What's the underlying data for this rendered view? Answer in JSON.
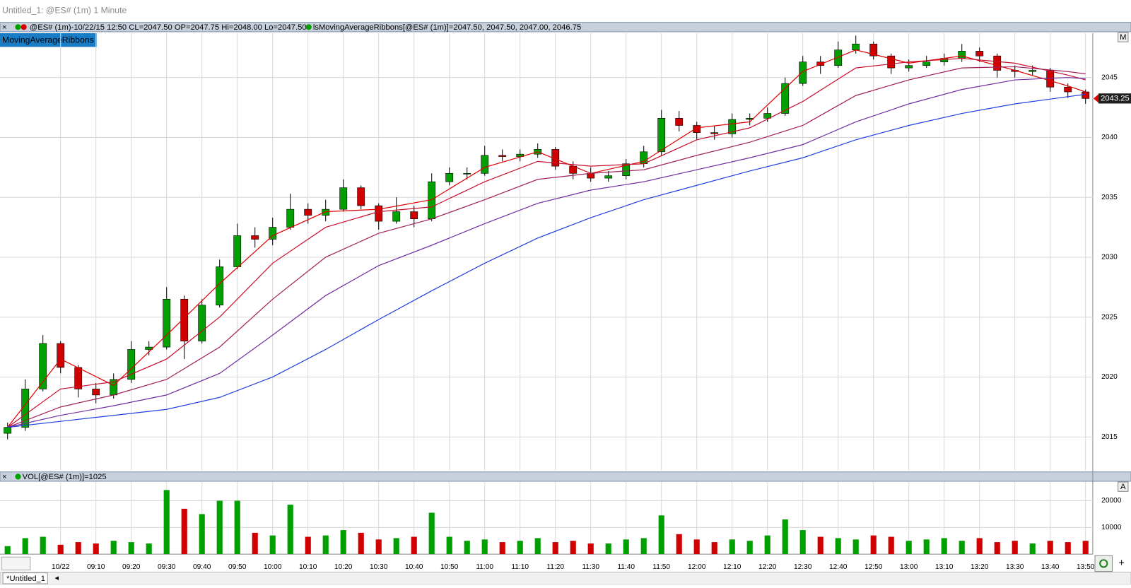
{
  "window_title": "Untitled_1: @ES# (1m) 1 Minute",
  "chart_data": [
    {
      "type": "candlestick",
      "header": "@ES# (1m)-10/22/15 12:50 CL=2047.50 OP=2047.75 Hi=2048.00 Lo=2047.50",
      "indicator_header": "lsMovingAverageRibbons[@ES# (1m)]=2047.50, 2047.50, 2047.00, 2046.75",
      "badge": "MovingAverageRibbons",
      "button": "M",
      "last_price": 2043.25,
      "up_color": "#00a000",
      "down_color": "#d00000",
      "x": [
        "08:45",
        "08:50",
        "08:55",
        "09:00",
        "09:05",
        "09:10",
        "09:15",
        "09:20",
        "09:25",
        "09:30",
        "09:35",
        "09:40",
        "09:45",
        "09:50",
        "09:55",
        "10:00",
        "10:05",
        "10:10",
        "10:15",
        "10:20",
        "10:25",
        "10:30",
        "10:35",
        "10:40",
        "10:45",
        "10:50",
        "10:55",
        "11:00",
        "11:05",
        "11:10",
        "11:15",
        "11:20",
        "11:25",
        "11:30",
        "11:35",
        "11:40",
        "11:45",
        "11:50",
        "11:55",
        "12:00",
        "12:05",
        "12:10",
        "12:15",
        "12:20",
        "12:25",
        "12:30",
        "12:35",
        "12:40",
        "12:45",
        "12:50",
        "12:55",
        "13:00",
        "13:05",
        "13:10",
        "13:15",
        "13:20",
        "13:25",
        "13:30",
        "13:35",
        "13:40",
        "13:45",
        "13:50"
      ],
      "open": [
        2015.3,
        2015.8,
        2019.0,
        2022.8,
        2020.8,
        2019.0,
        2018.5,
        2019.8,
        2022.3,
        2022.5,
        2026.5,
        2023.0,
        2026.0,
        2029.2,
        2031.8,
        2031.5,
        2032.5,
        2034.0,
        2033.5,
        2034.0,
        2035.8,
        2034.3,
        2033.0,
        2033.8,
        2033.2,
        2036.3,
        2037.0,
        2037.0,
        2038.5,
        2038.4,
        2038.6,
        2039.0,
        2037.6,
        2037.0,
        2036.6,
        2036.8,
        2037.8,
        2038.8,
        2041.6,
        2041.0,
        2040.4,
        2040.3,
        2041.5,
        2041.6,
        2042.0,
        2044.5,
        2046.3,
        2046.0,
        2047.3,
        2047.8,
        2046.8,
        2045.8,
        2046.0,
        2046.3,
        2046.6,
        2047.2,
        2046.8,
        2045.6,
        2045.5,
        2045.6,
        2044.2,
        2043.8
      ],
      "high": [
        2016.2,
        2019.8,
        2023.5,
        2023.0,
        2021.0,
        2019.5,
        2020.3,
        2023.0,
        2023.0,
        2027.5,
        2026.8,
        2026.5,
        2029.8,
        2032.8,
        2032.5,
        2033.3,
        2035.3,
        2034.5,
        2034.8,
        2036.5,
        2036.0,
        2034.5,
        2035.0,
        2034.3,
        2037.0,
        2037.5,
        2037.5,
        2039.3,
        2039.0,
        2039.0,
        2039.5,
        2039.2,
        2038.0,
        2037.5,
        2037.2,
        2038.2,
        2039.3,
        2042.3,
        2042.2,
        2041.3,
        2041.0,
        2042.0,
        2042.0,
        2042.5,
        2045.0,
        2046.8,
        2046.8,
        2048.0,
        2048.5,
        2048.0,
        2047.0,
        2046.5,
        2046.8,
        2047.0,
        2047.8,
        2047.5,
        2047.0,
        2046.0,
        2046.0,
        2045.8,
        2044.5,
        2044.0
      ],
      "low": [
        2014.8,
        2015.5,
        2018.8,
        2020.3,
        2018.3,
        2017.8,
        2018.2,
        2019.5,
        2021.8,
        2022.3,
        2021.5,
        2022.8,
        2025.8,
        2029.0,
        2030.8,
        2031.0,
        2032.3,
        2032.8,
        2033.0,
        2033.8,
        2034.0,
        2032.3,
        2032.8,
        2032.5,
        2033.0,
        2036.0,
        2036.5,
        2036.8,
        2038.0,
        2038.0,
        2038.3,
        2037.3,
        2036.5,
        2036.3,
        2036.3,
        2036.5,
        2037.5,
        2038.5,
        2040.5,
        2039.8,
        2039.8,
        2040.0,
        2041.0,
        2041.3,
        2041.8,
        2044.3,
        2045.3,
        2045.8,
        2047.0,
        2046.5,
        2045.3,
        2045.5,
        2045.8,
        2046.0,
        2046.3,
        2046.3,
        2045.0,
        2045.0,
        2045.2,
        2043.8,
        2043.3,
        2042.8
      ],
      "close": [
        2015.8,
        2019.0,
        2022.8,
        2020.8,
        2019.0,
        2018.5,
        2019.8,
        2022.3,
        2022.5,
        2026.5,
        2023.0,
        2026.0,
        2029.2,
        2031.8,
        2031.5,
        2032.5,
        2034.0,
        2033.5,
        2034.0,
        2035.8,
        2034.3,
        2033.0,
        2033.8,
        2033.2,
        2036.3,
        2037.0,
        2037.0,
        2038.5,
        2038.4,
        2038.6,
        2039.0,
        2037.6,
        2037.0,
        2036.6,
        2036.8,
        2037.8,
        2038.8,
        2041.6,
        2041.0,
        2040.4,
        2040.3,
        2041.5,
        2041.6,
        2042.0,
        2044.5,
        2046.3,
        2046.0,
        2047.3,
        2047.8,
        2046.8,
        2045.8,
        2046.0,
        2046.3,
        2046.6,
        2047.2,
        2046.8,
        2045.6,
        2045.5,
        2045.6,
        2044.2,
        2043.8,
        2043.25
      ],
      "ribbons": {
        "x": [
          "08:45",
          "09:00",
          "09:15",
          "09:30",
          "09:45",
          "10:00",
          "10:15",
          "10:30",
          "10:45",
          "11:00",
          "11:15",
          "11:30",
          "11:45",
          "12:00",
          "12:15",
          "12:30",
          "12:45",
          "13:00",
          "13:15",
          "13:30",
          "13:45",
          "13:50"
        ],
        "series": [
          {
            "color": "#e00000",
            "values": [
              2015.8,
              2021.5,
              2019.3,
              2023.5,
              2027.8,
              2031.8,
              2033.8,
              2034.0,
              2034.8,
              2037.5,
              2038.8,
              2037.0,
              2038.0,
              2040.8,
              2041.3,
              2045.5,
              2047.3,
              2046.2,
              2046.8,
              2045.6,
              2044.3,
              2043.8
            ]
          },
          {
            "color": "#c8102e",
            "values": [
              2015.8,
              2019.0,
              2019.6,
              2021.5,
              2025.0,
              2029.5,
              2032.5,
              2033.8,
              2034.2,
              2036.3,
              2038.0,
              2037.6,
              2037.8,
              2039.8,
              2040.8,
              2043.0,
              2045.8,
              2046.3,
              2046.6,
              2046.2,
              2045.2,
              2044.8
            ]
          },
          {
            "color": "#a0205a",
            "values": [
              2015.8,
              2017.5,
              2018.5,
              2019.8,
              2022.5,
              2026.5,
              2030.0,
              2032.0,
              2033.2,
              2034.8,
              2036.5,
              2037.0,
              2037.3,
              2038.5,
              2039.6,
              2041.0,
              2043.5,
              2044.8,
              2045.8,
              2045.9,
              2045.5,
              2045.3
            ]
          },
          {
            "color": "#7030a0",
            "values": [
              2015.8,
              2016.8,
              2017.6,
              2018.5,
              2020.3,
              2023.5,
              2026.8,
              2029.3,
              2031.0,
              2032.8,
              2034.5,
              2035.6,
              2036.3,
              2037.3,
              2038.3,
              2039.4,
              2041.3,
              2042.8,
              2044.0,
              2044.8,
              2045.0,
              2044.9
            ]
          },
          {
            "color": "#2040e0",
            "values": [
              2015.8,
              2016.3,
              2016.8,
              2017.3,
              2018.3,
              2020.0,
              2022.3,
              2024.8,
              2027.2,
              2029.5,
              2031.6,
              2033.3,
              2034.8,
              2036.0,
              2037.2,
              2038.3,
              2039.8,
              2041.0,
              2042.0,
              2042.8,
              2043.4,
              2043.6
            ]
          }
        ]
      },
      "ylim": [
        2012.2,
        2048.7
      ],
      "yticks": [
        2015,
        2020,
        2025,
        2030,
        2035,
        2040,
        2045
      ],
      "xticks": [
        {
          "value": "09:00",
          "label": "10/22"
        },
        "09:10",
        "09:20",
        "09:30",
        "09:40",
        "09:50",
        "10:00",
        "10:10",
        "10:20",
        "10:30",
        "10:40",
        "10:50",
        "11:00",
        "11:10",
        "11:20",
        "11:30",
        "11:40",
        "11:50",
        "12:00",
        "12:10",
        "12:20",
        "12:30",
        "12:40",
        "12:50",
        "13:00",
        "13:10",
        "13:20",
        "13:30",
        "13:40",
        "13:50"
      ],
      "grid": true
    },
    {
      "type": "bar",
      "header": "VOL[@ES# (1m)]=1025",
      "button": "A",
      "x": [
        "08:45",
        "08:50",
        "08:55",
        "09:00",
        "09:05",
        "09:10",
        "09:15",
        "09:20",
        "09:25",
        "09:30",
        "09:35",
        "09:40",
        "09:45",
        "09:50",
        "09:55",
        "10:00",
        "10:05",
        "10:10",
        "10:15",
        "10:20",
        "10:25",
        "10:30",
        "10:35",
        "10:40",
        "10:45",
        "10:50",
        "10:55",
        "11:00",
        "11:05",
        "11:10",
        "11:15",
        "11:20",
        "11:25",
        "11:30",
        "11:35",
        "11:40",
        "11:45",
        "11:50",
        "11:55",
        "12:00",
        "12:05",
        "12:10",
        "12:15",
        "12:20",
        "12:25",
        "12:30",
        "12:35",
        "12:40",
        "12:45",
        "12:50",
        "12:55",
        "13:00",
        "13:05",
        "13:10",
        "13:15",
        "13:20",
        "13:25",
        "13:30",
        "13:35",
        "13:40",
        "13:45",
        "13:50"
      ],
      "values": [
        3000,
        6000,
        6500,
        3500,
        4500,
        4000,
        5000,
        4500,
        4000,
        24000,
        17000,
        15000,
        20000,
        20000,
        8000,
        7000,
        18500,
        6500,
        7000,
        9000,
        8000,
        5500,
        6000,
        6500,
        15500,
        6500,
        5000,
        5500,
        4500,
        5000,
        6000,
        4500,
        5000,
        4000,
        4000,
        5500,
        6000,
        14500,
        7500,
        5500,
        4500,
        5500,
        5000,
        7000,
        13000,
        9000,
        6500,
        6000,
        5500,
        7000,
        6500,
        5000,
        5500,
        6000,
        5000,
        6000,
        4500,
        5000,
        4000,
        5000,
        4500,
        5000
      ],
      "ylim": [
        0,
        27000
      ],
      "yticks": [
        10000,
        20000
      ],
      "grid": true
    }
  ],
  "tab": "*Untitled_1",
  "add_button": "+"
}
